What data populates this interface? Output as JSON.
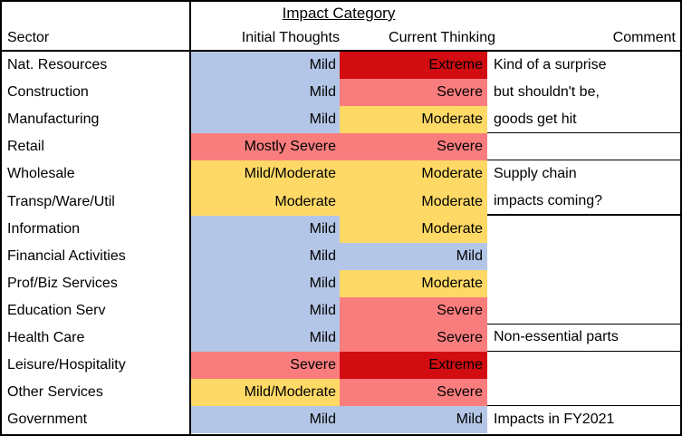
{
  "chart_data": {
    "type": "table",
    "title": "Impact Category",
    "columns": [
      "Sector",
      "Initial Thoughts",
      "Current Thinking",
      "Comment"
    ],
    "colors": {
      "Mild": "#B4C6E7",
      "Moderate": "#FFD966",
      "Mild/Moderate": "#FFD966",
      "Severe": "#FA7D7E",
      "Mostly Severe": "#FA7D7E",
      "Extreme": "#D10D11"
    },
    "rows": [
      {
        "sector": "Nat. Resources",
        "initial": "Mild",
        "current": "Extreme",
        "comment": "Kind of a surprise",
        "comment_underline": "none"
      },
      {
        "sector": "Construction",
        "initial": "Mild",
        "current": "Severe",
        "comment": "but shouldn't be,",
        "comment_underline": "none"
      },
      {
        "sector": "Manufacturing",
        "initial": "Mild",
        "current": "Moderate",
        "comment": "goods get hit",
        "comment_underline": "thin"
      },
      {
        "sector": "Retail",
        "initial": "Mostly Severe",
        "current": "Severe",
        "comment": "",
        "comment_underline": "thin"
      },
      {
        "sector": "Wholesale",
        "initial": "Mild/Moderate",
        "current": "Moderate",
        "comment": "Supply chain",
        "comment_underline": "none"
      },
      {
        "sector": "Transp/Ware/Util",
        "initial": "Moderate",
        "current": "Moderate",
        "comment": "impacts coming?",
        "comment_underline": "thick"
      },
      {
        "sector": "Information",
        "initial": "Mild",
        "current": "Moderate",
        "comment": "",
        "comment_underline": "none"
      },
      {
        "sector": "Financial Activities",
        "initial": "Mild",
        "current": "Mild",
        "comment": "",
        "comment_underline": "none"
      },
      {
        "sector": "Prof/Biz Services",
        "initial": "Mild",
        "current": "Moderate",
        "comment": "",
        "comment_underline": "none"
      },
      {
        "sector": "Education Serv",
        "initial": "Mild",
        "current": "Severe",
        "comment": "",
        "comment_underline": "thin"
      },
      {
        "sector": "Health Care",
        "initial": "Mild",
        "current": "Severe",
        "comment": "Non-essential parts",
        "comment_underline": "thin"
      },
      {
        "sector": "Leisure/Hospitality",
        "initial": "Severe",
        "current": "Extreme",
        "comment": "",
        "comment_underline": "none"
      },
      {
        "sector": "Other Services",
        "initial": "Mild/Moderate",
        "current": "Severe",
        "comment": "",
        "comment_underline": "thin"
      },
      {
        "sector": "Government",
        "initial": "Mild",
        "current": "Mild",
        "comment": "Impacts in FY2021",
        "comment_underline": "none"
      }
    ]
  }
}
